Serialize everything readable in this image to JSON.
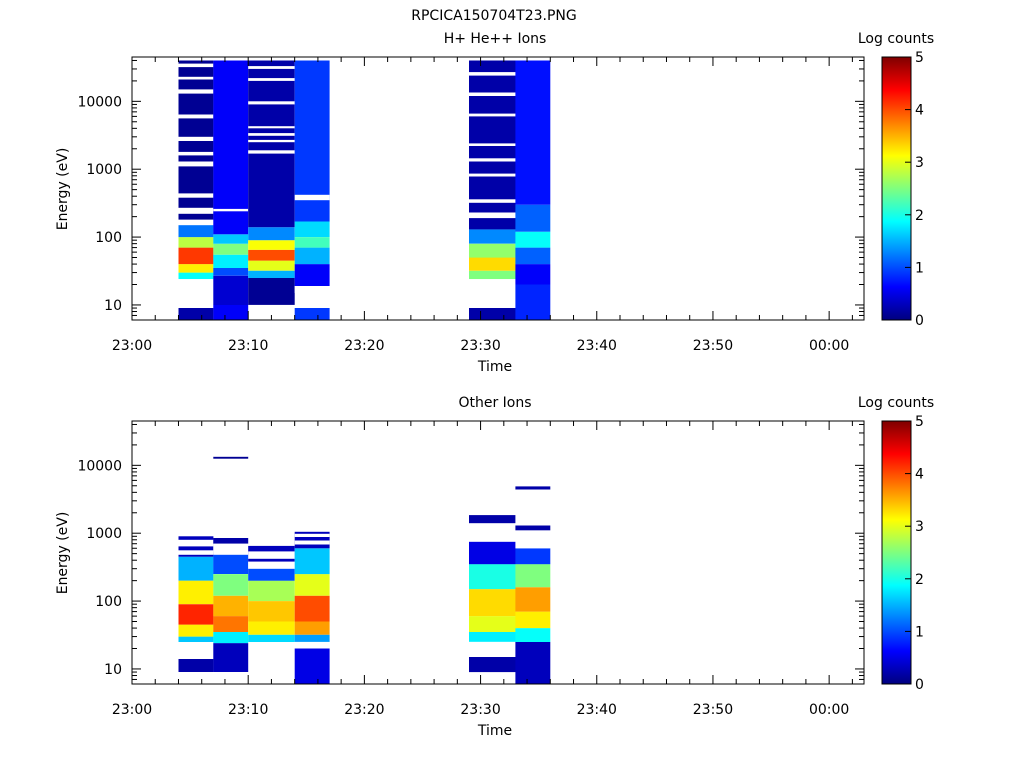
{
  "page_title": "RPCICA150704T23.PNG",
  "colormap_stops": [
    "#00007f",
    "#0000ff",
    "#007fff",
    "#00ffff",
    "#7fff7f",
    "#ffff00",
    "#ff7f00",
    "#ff0000",
    "#7f0000"
  ],
  "chart_data": [
    {
      "type": "heatmap",
      "title": "H+ He++ Ions",
      "xlabel": "Time",
      "ylabel": "Energy (eV)",
      "y_scale": "log",
      "ylim": [
        6,
        45000
      ],
      "x_range": [
        "23:00",
        "00:03"
      ],
      "x_ticks": [
        "23:00",
        "23:10",
        "23:20",
        "23:30",
        "23:40",
        "23:50",
        "00:00"
      ],
      "y_ticks": [
        "10",
        "100",
        "1000",
        "10000"
      ],
      "colorbar": {
        "label": "Log counts",
        "range": [
          0,
          5
        ],
        "ticks": [
          "0",
          "1",
          "2",
          "3",
          "4",
          "5"
        ]
      },
      "columns": [
        {
          "start": "23:04",
          "end": "23:07",
          "data_gaps_eV": [
            [
              9,
              11
            ],
            [
              15,
              24
            ],
            [
              150,
              180
            ],
            [
              220,
              270
            ],
            [
              380,
              440
            ],
            [
              1100,
              1300
            ],
            [
              1600,
              1800
            ],
            [
              2600,
              3000
            ],
            [
              5600,
              6400
            ],
            [
              13000,
              15000
            ],
            [
              21000,
              23000
            ],
            [
              32000,
              36000
            ]
          ],
          "log_counts": [
            {
              "range_eV": [
                6,
                9
              ],
              "value": 0.2
            },
            {
              "range_eV": [
                24,
                30
              ],
              "value": 1.9
            },
            {
              "range_eV": [
                30,
                40
              ],
              "value": 3.2
            },
            {
              "range_eV": [
                40,
                70
              ],
              "value": 4.1
            },
            {
              "range_eV": [
                70,
                100
              ],
              "value": 2.8
            },
            {
              "range_eV": [
                100,
                150
              ],
              "value": 1.2
            },
            {
              "range_eV": [
                180,
                40000
              ],
              "value": 0.1
            }
          ]
        },
        {
          "start": "23:07",
          "end": "23:10",
          "data_gaps_eV": [
            [
              240,
              260
            ]
          ],
          "log_counts": [
            {
              "range_eV": [
                6,
                10
              ],
              "value": 0.6
            },
            {
              "range_eV": [
                10,
                27
              ],
              "value": 0.4
            },
            {
              "range_eV": [
                27,
                35
              ],
              "value": 1.0
            },
            {
              "range_eV": [
                35,
                55
              ],
              "value": 1.8
            },
            {
              "range_eV": [
                55,
                80
              ],
              "value": 2.5
            },
            {
              "range_eV": [
                80,
                110
              ],
              "value": 1.6
            },
            {
              "range_eV": [
                110,
                40000
              ],
              "value": 0.6
            }
          ]
        },
        {
          "start": "23:10",
          "end": "23:14",
          "data_gaps_eV": [
            [
              1700,
              1900
            ],
            [
              2500,
              2700
            ],
            [
              3100,
              3400
            ],
            [
              4000,
              4300
            ],
            [
              9000,
              10000
            ],
            [
              20000,
              22000
            ],
            [
              30000,
              33000
            ]
          ],
          "log_counts": [
            {
              "range_eV": [
                10,
                25
              ],
              "value": 0.1
            },
            {
              "range_eV": [
                25,
                32
              ],
              "value": 1.5
            },
            {
              "range_eV": [
                32,
                45
              ],
              "value": 3.0
            },
            {
              "range_eV": [
                45,
                65
              ],
              "value": 4.0
            },
            {
              "range_eV": [
                65,
                90
              ],
              "value": 3.1
            },
            {
              "range_eV": [
                90,
                140
              ],
              "value": 1.3
            },
            {
              "range_eV": [
                140,
                40000
              ],
              "value": 0.2
            }
          ]
        },
        {
          "start": "23:14",
          "end": "23:17",
          "data_gaps_eV": [
            [
              15,
              19
            ],
            [
              350,
              420
            ]
          ],
          "log_counts": [
            {
              "range_eV": [
                6,
                9
              ],
              "value": 0.9
            },
            {
              "range_eV": [
                19,
                40
              ],
              "value": 0.6
            },
            {
              "range_eV": [
                40,
                70
              ],
              "value": 1.5
            },
            {
              "range_eV": [
                70,
                100
              ],
              "value": 2.2
            },
            {
              "range_eV": [
                100,
                170
              ],
              "value": 1.7
            },
            {
              "range_eV": [
                170,
                40000
              ],
              "value": 0.9
            }
          ]
        },
        {
          "start": "23:29",
          "end": "23:33",
          "data_gaps_eV": [
            [
              9,
              11
            ],
            [
              15,
              24
            ],
            [
              190,
              230
            ],
            [
              320,
              360
            ],
            [
              780,
              860
            ],
            [
              1300,
              1450
            ],
            [
              2200,
              2400
            ],
            [
              6000,
              6600
            ],
            [
              12000,
              13500
            ],
            [
              24000,
              27000
            ]
          ],
          "log_counts": [
            {
              "range_eV": [
                6,
                9
              ],
              "value": 0.2
            },
            {
              "range_eV": [
                24,
                32
              ],
              "value": 2.5
            },
            {
              "range_eV": [
                32,
                50
              ],
              "value": 3.3
            },
            {
              "range_eV": [
                50,
                80
              ],
              "value": 2.6
            },
            {
              "range_eV": [
                80,
                130
              ],
              "value": 1.3
            },
            {
              "range_eV": [
                130,
                40000
              ],
              "value": 0.2
            }
          ]
        },
        {
          "start": "23:33",
          "end": "23:36",
          "data_gaps_eV": [],
          "log_counts": [
            {
              "range_eV": [
                6,
                20
              ],
              "value": 0.8
            },
            {
              "range_eV": [
                20,
                40
              ],
              "value": 0.6
            },
            {
              "range_eV": [
                40,
                70
              ],
              "value": 1.1
            },
            {
              "range_eV": [
                70,
                120
              ],
              "value": 1.9
            },
            {
              "range_eV": [
                120,
                300
              ],
              "value": 1.1
            },
            {
              "range_eV": [
                300,
                40000
              ],
              "value": 0.7
            }
          ]
        }
      ]
    },
    {
      "type": "heatmap",
      "title": "Other Ions",
      "xlabel": "Time",
      "ylabel": "Energy (eV)",
      "y_scale": "log",
      "ylim": [
        6,
        45000
      ],
      "x_range": [
        "23:00",
        "00:03"
      ],
      "x_ticks": [
        "23:00",
        "23:10",
        "23:20",
        "23:30",
        "23:40",
        "23:50",
        "00:00"
      ],
      "y_ticks": [
        "10",
        "100",
        "1000",
        "10000"
      ],
      "colorbar": {
        "label": "Log counts",
        "range": [
          0,
          5
        ],
        "ticks": [
          "0",
          "1",
          "2",
          "3",
          "4",
          "5"
        ]
      },
      "columns": [
        {
          "start": "23:04",
          "end": "23:07",
          "data_gaps_eV": [
            [
              480,
              560
            ],
            [
              640,
              800
            ]
          ],
          "log_counts": [
            {
              "range_eV": [
                9,
                14
              ],
              "value": 0.2
            },
            {
              "range_eV": [
                25,
                30
              ],
              "value": 1.6
            },
            {
              "range_eV": [
                30,
                45
              ],
              "value": 3.2
            },
            {
              "range_eV": [
                45,
                90
              ],
              "value": 4.2
            },
            {
              "range_eV": [
                90,
                200
              ],
              "value": 3.2
            },
            {
              "range_eV": [
                200,
                450
              ],
              "value": 1.5
            },
            {
              "range_eV": [
                450,
                900
              ],
              "value": 0.3
            }
          ]
        },
        {
          "start": "23:07",
          "end": "23:10",
          "data_gaps_eV": [
            [
              520,
              700
            ],
            [
              13400,
              14500
            ]
          ],
          "log_counts": [
            {
              "range_eV": [
                9,
                24
              ],
              "value": 0.3
            },
            {
              "range_eV": [
                24,
                35
              ],
              "value": 1.8
            },
            {
              "range_eV": [
                35,
                60
              ],
              "value": 3.8
            },
            {
              "range_eV": [
                60,
                120
              ],
              "value": 3.5
            },
            {
              "range_eV": [
                120,
                250
              ],
              "value": 2.5
            },
            {
              "range_eV": [
                250,
                480
              ],
              "value": 1.0
            },
            {
              "range_eV": [
                700,
                850
              ],
              "value": 0.2
            },
            {
              "range_eV": [
                12500,
                13400
              ],
              "value": 0.1
            }
          ]
        },
        {
          "start": "23:10",
          "end": "23:14",
          "data_gaps_eV": [
            [
              300,
              380
            ],
            [
              420,
              540
            ]
          ],
          "log_counts": [
            {
              "range_eV": [
                25,
                32
              ],
              "value": 1.7
            },
            {
              "range_eV": [
                32,
                50
              ],
              "value": 3.2
            },
            {
              "range_eV": [
                50,
                100
              ],
              "value": 3.4
            },
            {
              "range_eV": [
                100,
                200
              ],
              "value": 2.7
            },
            {
              "range_eV": [
                200,
                300
              ],
              "value": 1.0
            },
            {
              "range_eV": [
                380,
                650
              ],
              "value": 0.3
            }
          ]
        },
        {
          "start": "23:14",
          "end": "23:17",
          "data_gaps_eV": [
            [
              20,
              25
            ],
            [
              680,
              780
            ],
            [
              880,
              980
            ]
          ],
          "log_counts": [
            {
              "range_eV": [
                6,
                20
              ],
              "value": 0.5
            },
            {
              "range_eV": [
                25,
                32
              ],
              "value": 1.4
            },
            {
              "range_eV": [
                32,
                50
              ],
              "value": 3.6
            },
            {
              "range_eV": [
                50,
                120
              ],
              "value": 4.0
            },
            {
              "range_eV": [
                120,
                250
              ],
              "value": 3.0
            },
            {
              "range_eV": [
                250,
                600
              ],
              "value": 1.6
            },
            {
              "range_eV": [
                600,
                1050
              ],
              "value": 0.3
            }
          ]
        },
        {
          "start": "23:29",
          "end": "23:33",
          "data_gaps_eV": [
            [
              15,
              25
            ],
            [
              750,
              1400
            ]
          ],
          "log_counts": [
            {
              "range_eV": [
                9,
                15
              ],
              "value": 0.2
            },
            {
              "range_eV": [
                25,
                35
              ],
              "value": 1.8
            },
            {
              "range_eV": [
                35,
                60
              ],
              "value": 3.0
            },
            {
              "range_eV": [
                60,
                150
              ],
              "value": 3.3
            },
            {
              "range_eV": [
                150,
                350
              ],
              "value": 2.0
            },
            {
              "range_eV": [
                350,
                750
              ],
              "value": 0.5
            },
            {
              "range_eV": [
                1400,
                1850
              ],
              "value": 0.2
            }
          ]
        },
        {
          "start": "23:33",
          "end": "23:36",
          "data_gaps_eV": [
            [
              600,
              1100
            ],
            [
              1300,
              4400
            ]
          ],
          "log_counts": [
            {
              "range_eV": [
                6,
                25
              ],
              "value": 0.3
            },
            {
              "range_eV": [
                25,
                40
              ],
              "value": 1.9
            },
            {
              "range_eV": [
                40,
                70
              ],
              "value": 3.2
            },
            {
              "range_eV": [
                70,
                160
              ],
              "value": 3.6
            },
            {
              "range_eV": [
                160,
                350
              ],
              "value": 2.5
            },
            {
              "range_eV": [
                350,
                600
              ],
              "value": 0.9
            },
            {
              "range_eV": [
                1100,
                1300
              ],
              "value": 0.2
            },
            {
              "range_eV": [
                4400,
                4900
              ],
              "value": 0.2
            }
          ]
        }
      ]
    }
  ]
}
